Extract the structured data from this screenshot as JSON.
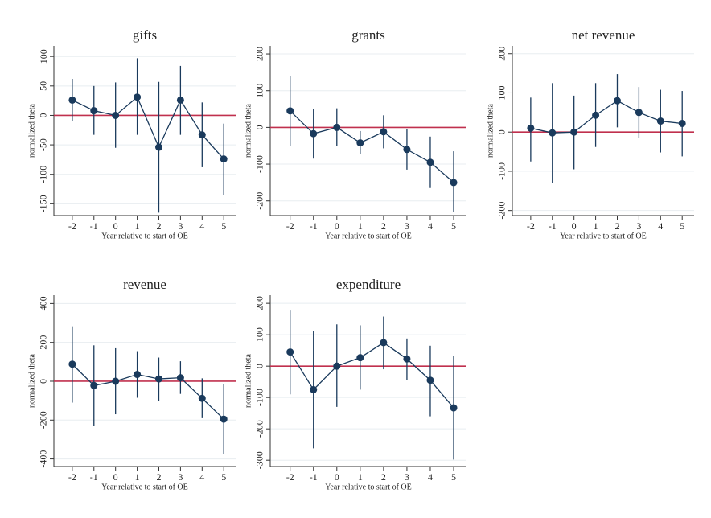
{
  "chart_data": [
    {
      "type": "errorbar-line",
      "title": "gifts",
      "ylabel": "normalized theta",
      "xlabel": "Year relative to start of OE",
      "x": [
        -2,
        -1,
        0,
        1,
        2,
        3,
        4,
        5
      ],
      "xlim": [
        -2.85,
        5.55
      ],
      "xticks": [
        -2,
        -1,
        0,
        1,
        2,
        3,
        4,
        5
      ],
      "values": [
        26,
        8,
        0,
        31,
        -54,
        26,
        -33,
        -74
      ],
      "lower": [
        -10,
        -33,
        -55,
        -33,
        -165,
        -33,
        -88,
        -135
      ],
      "upper": [
        62,
        50,
        56,
        97,
        57,
        84,
        22,
        -14
      ],
      "ylim": [
        -170,
        118
      ],
      "yticks": [
        -150,
        -100,
        -50,
        0,
        50,
        100
      ],
      "grid": true,
      "color": "#1a3a5c",
      "hline": 0,
      "hline_color": "#c0304e"
    },
    {
      "type": "errorbar-line",
      "title": "grants",
      "ylabel": "normalized theta",
      "xlabel": "Year relative to start of OE",
      "x": [
        -2,
        -1,
        0,
        1,
        2,
        3,
        4,
        5
      ],
      "xlim": [
        -2.85,
        5.55
      ],
      "xticks": [
        -2,
        -1,
        0,
        1,
        2,
        3,
        4,
        5
      ],
      "values": [
        45,
        -17,
        0,
        -42,
        -12,
        -60,
        -95,
        -150
      ],
      "lower": [
        -50,
        -85,
        -50,
        -72,
        -57,
        -115,
        -165,
        -230
      ],
      "upper": [
        140,
        50,
        52,
        -10,
        33,
        -5,
        -25,
        -65
      ],
      "ylim": [
        -240,
        222
      ],
      "yticks": [
        -200,
        -100,
        0,
        100,
        200
      ],
      "grid": true,
      "color": "#1a3a5c",
      "hline": 0,
      "hline_color": "#c0304e"
    },
    {
      "type": "errorbar-line",
      "title": "net revenue",
      "ylabel": "normalized theta",
      "xlabel": "Year relative to start of OE",
      "x": [
        -2,
        -1,
        0,
        1,
        2,
        3,
        4,
        5
      ],
      "xlim": [
        -2.85,
        5.55
      ],
      "xticks": [
        -2,
        -1,
        0,
        1,
        2,
        3,
        4,
        5
      ],
      "values": [
        10,
        -2,
        0,
        43,
        80,
        50,
        28,
        22
      ],
      "lower": [
        -75,
        -130,
        -95,
        -38,
        12,
        -15,
        -52,
        -62
      ],
      "upper": [
        88,
        125,
        93,
        125,
        148,
        115,
        108,
        105
      ],
      "ylim": [
        -213,
        220
      ],
      "yticks": [
        -200,
        -100,
        0,
        100,
        200
      ],
      "grid": true,
      "color": "#1a3a5c",
      "hline": 0,
      "hline_color": "#c0304e"
    },
    {
      "type": "errorbar-line",
      "title": "revenue",
      "ylabel": "normalized theta",
      "xlabel": "Year relative to start of OE",
      "x": [
        -2,
        -1,
        0,
        1,
        2,
        3,
        4,
        5
      ],
      "xlim": [
        -2.85,
        5.55
      ],
      "xticks": [
        -2,
        -1,
        0,
        1,
        2,
        3,
        4,
        5
      ],
      "values": [
        88,
        -22,
        0,
        35,
        12,
        18,
        -88,
        -195
      ],
      "lower": [
        -110,
        -230,
        -170,
        -85,
        -100,
        -65,
        -190,
        -375
      ],
      "upper": [
        283,
        185,
        170,
        155,
        122,
        103,
        15,
        -15
      ],
      "ylim": [
        -439,
        443
      ],
      "yticks": [
        -400,
        -200,
        0,
        200,
        400
      ],
      "grid": true,
      "color": "#1a3a5c",
      "hline": 0,
      "hline_color": "#c0304e"
    },
    {
      "type": "errorbar-line",
      "title": "expenditure",
      "ylabel": "normalized theta",
      "xlabel": "Year relative to start of OE",
      "x": [
        -2,
        -1,
        0,
        1,
        2,
        3,
        4,
        5
      ],
      "xlim": [
        -2.85,
        5.55
      ],
      "xticks": [
        -2,
        -1,
        0,
        1,
        2,
        3,
        4,
        5
      ],
      "values": [
        45,
        -75,
        0,
        27,
        75,
        23,
        -45,
        -133
      ],
      "lower": [
        -90,
        -262,
        -130,
        -75,
        -10,
        -45,
        -160,
        -298
      ],
      "upper": [
        177,
        112,
        133,
        130,
        158,
        88,
        65,
        33
      ],
      "ylim": [
        -320,
        226
      ],
      "yticks": [
        -300,
        -200,
        -100,
        0,
        100,
        200
      ],
      "grid": true,
      "color": "#1a3a5c",
      "hline": 0,
      "hline_color": "#c0304e"
    }
  ]
}
